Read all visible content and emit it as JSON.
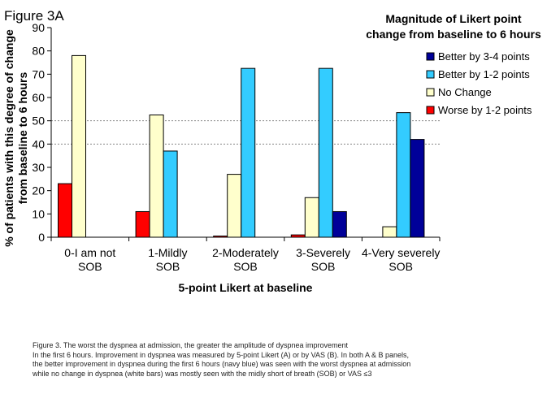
{
  "figure_label": "Figure 3A",
  "legend_title_lines": [
    "Magnitude of Likert point",
    "change from baseline to 6 hours"
  ],
  "chart_data": {
    "type": "bar",
    "ylabel_lines": [
      "% of patients with this degree of change",
      "from baseline to 6 hours"
    ],
    "xlabel": "5-point Likert at baseline",
    "ylim": [
      0,
      90
    ],
    "yticks": [
      0,
      10,
      20,
      30,
      40,
      50,
      60,
      70,
      80,
      90
    ],
    "grid_lines": [
      40,
      50
    ],
    "legend_position": "top-right",
    "categories": [
      [
        "0-I am not",
        "SOB"
      ],
      [
        "1-Mildly",
        "SOB"
      ],
      [
        "2-Moderately",
        "SOB"
      ],
      [
        "3-Severely",
        "SOB"
      ],
      [
        "4-Very severely",
        "SOB"
      ]
    ],
    "series": [
      {
        "name": "Worse by 1-2 points",
        "color": "#ff0000",
        "values": [
          23,
          11,
          0.5,
          1,
          0
        ]
      },
      {
        "name": "No Change",
        "color": "#ffffcc",
        "values": [
          78,
          52.5,
          27,
          17,
          4.5
        ]
      },
      {
        "name": "Better by 1-2 points",
        "color": "#33ccff",
        "values": [
          0,
          37,
          72.5,
          72.5,
          53.5
        ]
      },
      {
        "name": "Better by 3-4 points",
        "color": "#000099",
        "values": [
          0,
          0,
          0,
          11,
          42
        ]
      }
    ],
    "legend_order": [
      "Better by 3-4 points",
      "Better by 1-2 points",
      "No Change",
      "Worse by 1-2 points"
    ]
  },
  "caption_lines": [
    "Figure 3. The worst the dyspnea at admission, the greater the amplitude of dyspnea improvement",
    "In the first 6 hours. Improvement  in dyspnea was measured by 5-point Likert (A) or by VAS (B). In both A & B panels,",
    "the better improvement in dyspnea during the first 6 hours (navy blue) was seen with the worst dyspnea at admission",
    "while no change in dyspnea (white bars) was mostly seen with the midly short of breath (SOB) or VAS ≤3"
  ]
}
